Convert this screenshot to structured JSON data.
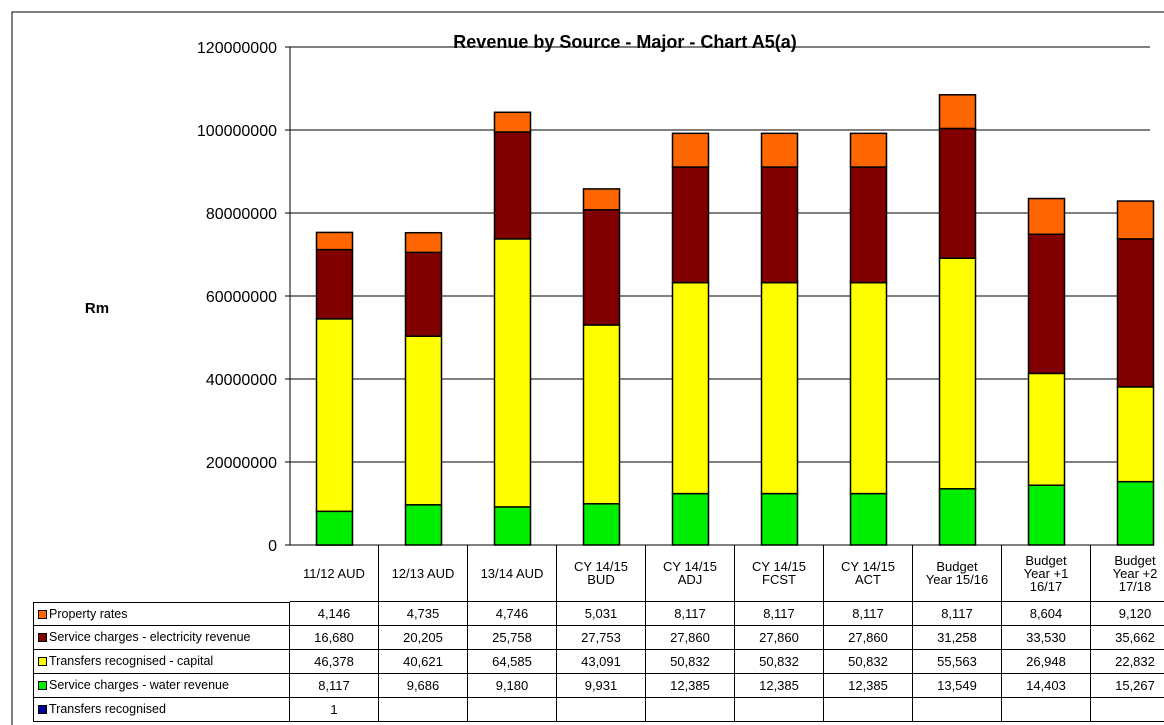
{
  "chart_data": {
    "type": "stacked_bar",
    "title": "Revenue by Source - Major - Chart A5(a)",
    "y_label": "Rm",
    "ylim": [
      0,
      120000000
    ],
    "yticks": [
      0,
      20000000,
      40000000,
      60000000,
      80000000,
      100000000,
      120000000
    ],
    "grid": true,
    "data_table": true,
    "categories": [
      "11/12 AUD",
      "12/13 AUD",
      "13/14 AUD",
      "CY 14/15\nBUD",
      "CY  14/15\nADJ",
      "CY 14/15\nFCST",
      "CY 14/15\nACT",
      "Budget\nYear 15/16",
      "Budget\nYear +1\n16/17",
      "Budget\nYear +2\n17/18"
    ],
    "series": [
      {
        "name": "Property rates",
        "color": "#ff6600",
        "values": [
          4146000,
          4735000,
          4746000,
          5031000,
          8117000,
          8117000,
          8117000,
          8117000,
          8604000,
          9120000
        ],
        "value_labels": [
          "4,146",
          "4,735",
          "4,746",
          "5,031",
          "8,117",
          "8,117",
          "8,117",
          "8,117",
          "8,604",
          "9,120"
        ]
      },
      {
        "name": "Service charges - electricity revenue",
        "color": "#800000",
        "values": [
          16680000,
          20205000,
          25758000,
          27753000,
          27860000,
          27860000,
          27860000,
          31258000,
          33530000,
          35662000
        ],
        "value_labels": [
          "16,680",
          "20,205",
          "25,758",
          "27,753",
          "27,860",
          "27,860",
          "27,860",
          "31,258",
          "33,530",
          "35,662"
        ]
      },
      {
        "name": "Transfers recognised - capital",
        "color": "#ffff00",
        "values": [
          46378000,
          40621000,
          64585000,
          43091000,
          50832000,
          50832000,
          50832000,
          55563000,
          26948000,
          22832000
        ],
        "value_labels": [
          "46,378",
          "40,621",
          "64,585",
          "43,091",
          "50,832",
          "50,832",
          "50,832",
          "55,563",
          "26,948",
          "22,832"
        ]
      },
      {
        "name": "Service charges - water revenue",
        "color": "#00ee00",
        "values": [
          8117000,
          9686000,
          9180000,
          9931000,
          12385000,
          12385000,
          12385000,
          13549000,
          14403000,
          15267000
        ],
        "value_labels": [
          "8,117",
          "9,686",
          "9,180",
          "9,931",
          "12,385",
          "12,385",
          "12,385",
          "13,549",
          "14,403",
          "15,267"
        ]
      },
      {
        "name": "Transfers recognised",
        "color": "#000099",
        "values": [
          1000,
          null,
          null,
          null,
          null,
          null,
          null,
          null,
          null,
          null
        ],
        "value_labels": [
          "1",
          null,
          null,
          null,
          null,
          null,
          null,
          null,
          null,
          null
        ]
      }
    ]
  }
}
